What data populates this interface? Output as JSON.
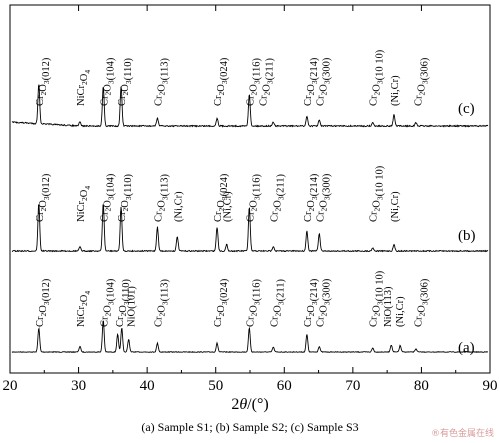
{
  "chart_data": {
    "type": "line",
    "title": "",
    "xlabel": "2θ/(°)",
    "ylabel": "",
    "xlim": [
      20,
      90
    ],
    "x_ticks": [
      20,
      30,
      40,
      50,
      60,
      70,
      80,
      90
    ],
    "grid": false,
    "legend": "none",
    "series": [
      {
        "name": "(a)",
        "peaks": [
          {
            "x": 24.2,
            "height": 0.3
          },
          {
            "x": 30.2,
            "height": 0.07
          },
          {
            "x": 33.6,
            "height": 0.4
          },
          {
            "x": 35.7,
            "height": 0.22
          },
          {
            "x": 36.3,
            "height": 0.3
          },
          {
            "x": 37.3,
            "height": 0.16
          },
          {
            "x": 41.5,
            "height": 0.11
          },
          {
            "x": 50.2,
            "height": 0.11
          },
          {
            "x": 54.9,
            "height": 0.3
          },
          {
            "x": 58.4,
            "height": 0.06
          },
          {
            "x": 63.3,
            "height": 0.22
          },
          {
            "x": 65.1,
            "height": 0.07
          },
          {
            "x": 72.9,
            "height": 0.05
          },
          {
            "x": 75.6,
            "height": 0.09
          },
          {
            "x": 76.9,
            "height": 0.08
          },
          {
            "x": 79.2,
            "height": 0.04
          }
        ],
        "labels": [
          {
            "x": 24.2,
            "text": "Cr₂O₃(012)"
          },
          {
            "x": 30.2,
            "text": "NiCr₂O₄"
          },
          {
            "x": 33.6,
            "text": "Cr₂O₃(104)"
          },
          {
            "x": 35.9,
            "text": "Cr₂O₃(110)"
          },
          {
            "x": 37.6,
            "text": "NiO(101)"
          },
          {
            "x": 41.5,
            "text": "Cr₂O₃(113)"
          },
          {
            "x": 50.2,
            "text": "Cr₂O₃(024)"
          },
          {
            "x": 54.9,
            "text": "Cr₂O₃(116)"
          },
          {
            "x": 58.4,
            "text": "Cr₂O₃(211)"
          },
          {
            "x": 63.3,
            "text": "Cr₂O₃(214)"
          },
          {
            "x": 65.1,
            "text": "Cr₂O₃(300)"
          },
          {
            "x": 72.9,
            "text": "Cr₂O₃(10 10)"
          },
          {
            "x": 75.0,
            "text": "NiO(113)"
          },
          {
            "x": 76.7,
            "text": "(Ni,Cr)"
          },
          {
            "x": 79.4,
            "text": "Cr₂O₃(306)"
          }
        ]
      },
      {
        "name": "(b)",
        "peaks": [
          {
            "x": 24.2,
            "height": 0.6
          },
          {
            "x": 30.2,
            "height": 0.05
          },
          {
            "x": 33.6,
            "height": 0.6
          },
          {
            "x": 36.2,
            "height": 0.55
          },
          {
            "x": 41.5,
            "height": 0.3
          },
          {
            "x": 44.4,
            "height": 0.18
          },
          {
            "x": 50.2,
            "height": 0.3
          },
          {
            "x": 51.6,
            "height": 0.08
          },
          {
            "x": 54.9,
            "height": 0.55
          },
          {
            "x": 58.4,
            "height": 0.06
          },
          {
            "x": 63.3,
            "height": 0.25
          },
          {
            "x": 65.1,
            "height": 0.22
          },
          {
            "x": 72.9,
            "height": 0.04
          },
          {
            "x": 76.0,
            "height": 0.08
          }
        ],
        "labels": [
          {
            "x": 24.2,
            "text": "Cr₂O₃(012)"
          },
          {
            "x": 30.2,
            "text": "NiCr₂O₄"
          },
          {
            "x": 33.6,
            "text": "Cr₂O₃(104)"
          },
          {
            "x": 36.2,
            "text": "Cr₂O₃(110)"
          },
          {
            "x": 41.5,
            "text": "Cr₂O₃(113)"
          },
          {
            "x": 44.4,
            "text": "(Ni,Cr)"
          },
          {
            "x": 50.2,
            "text": "Cr₂O₃(024)"
          },
          {
            "x": 51.6,
            "text": "(Ni,Cr)"
          },
          {
            "x": 54.9,
            "text": "Cr₂O₃(116)"
          },
          {
            "x": 58.4,
            "text": "Cr₂O₃(211)"
          },
          {
            "x": 63.3,
            "text": "Cr₂O₃(214)"
          },
          {
            "x": 65.1,
            "text": "Cr₂O₃(300)"
          },
          {
            "x": 72.9,
            "text": "Cr₂O₃(10 10)"
          },
          {
            "x": 76.0,
            "text": "(Ni,Cr)"
          }
        ]
      },
      {
        "name": "(c)",
        "peaks": [
          {
            "x": 24.2,
            "height": 0.5
          },
          {
            "x": 30.2,
            "height": 0.05
          },
          {
            "x": 33.6,
            "height": 0.5
          },
          {
            "x": 36.2,
            "height": 0.5
          },
          {
            "x": 41.5,
            "height": 0.1
          },
          {
            "x": 50.2,
            "height": 0.1
          },
          {
            "x": 54.9,
            "height": 0.4
          },
          {
            "x": 58.4,
            "height": 0.05
          },
          {
            "x": 63.3,
            "height": 0.12
          },
          {
            "x": 65.1,
            "height": 0.07
          },
          {
            "x": 72.9,
            "height": 0.04
          },
          {
            "x": 76.0,
            "height": 0.14
          },
          {
            "x": 79.2,
            "height": 0.04
          }
        ],
        "labels": [
          {
            "x": 24.2,
            "text": "Cr₂O₃(012)"
          },
          {
            "x": 30.2,
            "text": "NiCr₂O₄"
          },
          {
            "x": 33.6,
            "text": "Cr₂O₃(104)"
          },
          {
            "x": 36.2,
            "text": "Cr₂O₃(110)"
          },
          {
            "x": 41.5,
            "text": "Cr₂O₃(113)"
          },
          {
            "x": 50.2,
            "text": "Cr₂O₃(024)"
          },
          {
            "x": 54.9,
            "text": "Cr₂O₃(116)"
          },
          {
            "x": 56.8,
            "text": "Cr₂O₃(211)"
          },
          {
            "x": 63.3,
            "text": "Cr₂O₃(214)"
          },
          {
            "x": 65.1,
            "text": "Cr₂O₃(300)"
          },
          {
            "x": 72.9,
            "text": "Cr₂O₃(10 10)"
          },
          {
            "x": 76.0,
            "text": "(Ni,Cr)"
          },
          {
            "x": 79.4,
            "text": "Cr₂O₃(306)"
          }
        ]
      }
    ]
  },
  "caption": "(a)  Sample  S1;  (b) Sample S2; (c) Sample S3",
  "watermark": "®有色金属在线"
}
